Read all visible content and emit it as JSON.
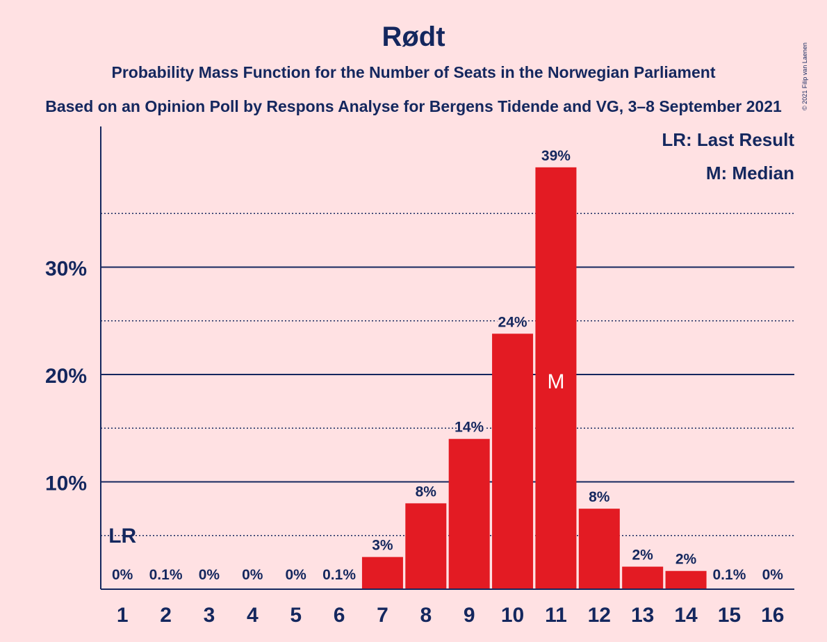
{
  "chart_data": {
    "type": "bar",
    "title": "Rødt",
    "subtitle": "Probability Mass Function for the Number of Seats in the Norwegian Parliament",
    "subtitle2": "Based on an Opinion Poll by Respons Analyse for Bergens Tidende and VG, 3–8 September 2021",
    "copyright": "© 2021 Filip van Laenen",
    "categories": [
      "1",
      "2",
      "3",
      "4",
      "5",
      "6",
      "7",
      "8",
      "9",
      "10",
      "11",
      "12",
      "13",
      "14",
      "15",
      "16"
    ],
    "values": [
      0,
      0.1,
      0,
      0,
      0,
      0.1,
      3.0,
      8.0,
      14.0,
      23.8,
      39.3,
      7.5,
      2.1,
      1.7,
      0.1,
      0
    ],
    "data_labels": [
      "0%",
      "0.1%",
      "0%",
      "0%",
      "0%",
      "0.1%",
      "3%",
      "8%",
      "14%",
      "24%",
      "39%",
      "8%",
      "2%",
      "2%",
      "0.1%",
      "0%"
    ],
    "ylim": [
      0,
      43
    ],
    "yticks": [
      10,
      20,
      30
    ],
    "ytick_labels": [
      "10%",
      "20%",
      "30%"
    ],
    "minor_gridlines": [
      5,
      15,
      25,
      35
    ],
    "legend": [
      "LR: Last Result",
      "M: Median"
    ],
    "legend_position": "top-right",
    "last_result_category": "1",
    "last_result_marker": "LR",
    "median_category": "11",
    "median_marker": "M",
    "colors": {
      "background": "#FFE1E3",
      "bar": "#E31B23",
      "text": "#14275E",
      "axis": "#14275E"
    }
  }
}
